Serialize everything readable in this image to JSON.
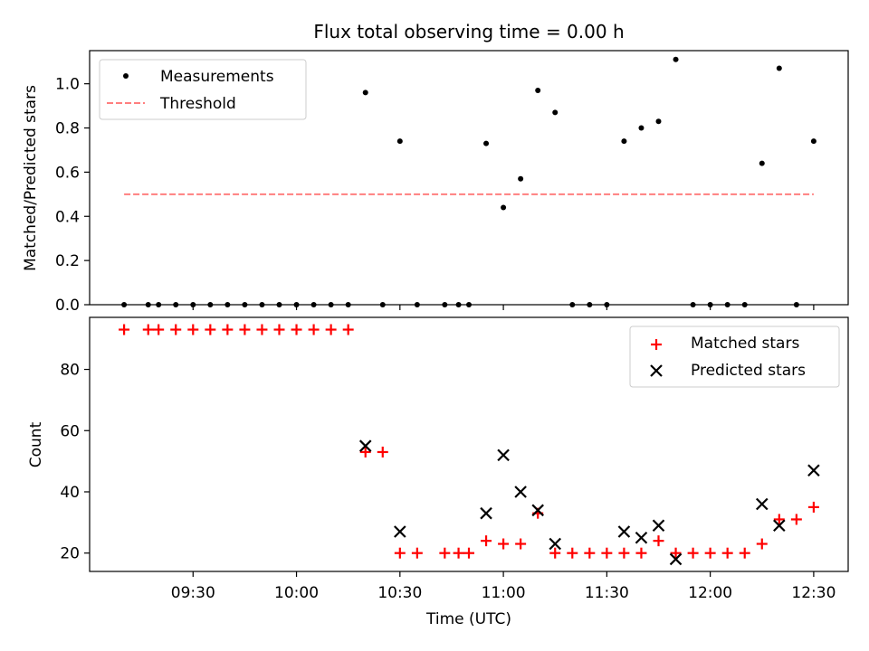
{
  "chart_data": {
    "title": "Flux total observing time = 0.00 h",
    "xlabel": "Time (UTC)",
    "x_tick_labels": [
      "09:30",
      "10:00",
      "10:30",
      "11:00",
      "11:30",
      "12:00",
      "12:30"
    ],
    "xlim": [
      "09:00",
      "12:40"
    ],
    "top": {
      "type": "scatter",
      "ylabel": "Matched/Predicted stars",
      "ylim": [
        0,
        1.15
      ],
      "yticks": [
        "0.0",
        "0.2",
        "0.4",
        "0.6",
        "0.8",
        "1.0"
      ],
      "legend": {
        "placement": "upper-left",
        "entries": [
          "Measurements",
          "Threshold"
        ]
      },
      "threshold": {
        "name": "Threshold",
        "value": 0.5,
        "x_range": [
          "09:10",
          "12:30"
        ],
        "color": "#ff7f7f",
        "style": "dashed"
      },
      "series": [
        {
          "name": "Measurements",
          "color": "#000000",
          "marker": "dot",
          "points": [
            [
              "09:10",
              0.0
            ],
            [
              "09:17",
              0.0
            ],
            [
              "09:20",
              0.0
            ],
            [
              "09:25",
              0.0
            ],
            [
              "09:30",
              0.0
            ],
            [
              "09:35",
              0.0
            ],
            [
              "09:40",
              0.0
            ],
            [
              "09:45",
              0.0
            ],
            [
              "09:50",
              0.0
            ],
            [
              "09:55",
              0.0
            ],
            [
              "10:00",
              0.0
            ],
            [
              "10:05",
              0.0
            ],
            [
              "10:10",
              0.0
            ],
            [
              "10:15",
              0.0
            ],
            [
              "10:20",
              0.96
            ],
            [
              "10:25",
              0.0
            ],
            [
              "10:30",
              0.74
            ],
            [
              "10:35",
              0.0
            ],
            [
              "10:43",
              0.0
            ],
            [
              "10:47",
              0.0
            ],
            [
              "10:50",
              0.0
            ],
            [
              "10:55",
              0.73
            ],
            [
              "11:00",
              0.44
            ],
            [
              "11:05",
              0.57
            ],
            [
              "11:10",
              0.97
            ],
            [
              "11:15",
              0.87
            ],
            [
              "11:20",
              0.0
            ],
            [
              "11:25",
              0.0
            ],
            [
              "11:30",
              0.0
            ],
            [
              "11:35",
              0.74
            ],
            [
              "11:40",
              0.8
            ],
            [
              "11:45",
              0.83
            ],
            [
              "11:50",
              1.11
            ],
            [
              "11:55",
              0.0
            ],
            [
              "12:00",
              0.0
            ],
            [
              "12:05",
              0.0
            ],
            [
              "12:10",
              0.0
            ],
            [
              "12:15",
              0.64
            ],
            [
              "12:20",
              1.07
            ],
            [
              "12:25",
              0.0
            ],
            [
              "12:30",
              0.74
            ]
          ]
        }
      ]
    },
    "bottom": {
      "type": "scatter",
      "ylabel": "Count",
      "ylim": [
        14,
        97
      ],
      "yticks": [
        "20",
        "40",
        "60",
        "80"
      ],
      "legend": {
        "placement": "upper-right",
        "entries": [
          "Matched stars",
          "Predicted stars"
        ]
      },
      "series": [
        {
          "name": "Matched stars",
          "color": "#ff0000",
          "marker": "plus",
          "points": [
            [
              "09:10",
              93
            ],
            [
              "09:17",
              93
            ],
            [
              "09:20",
              93
            ],
            [
              "09:25",
              93
            ],
            [
              "09:30",
              93
            ],
            [
              "09:35",
              93
            ],
            [
              "09:40",
              93
            ],
            [
              "09:45",
              93
            ],
            [
              "09:50",
              93
            ],
            [
              "09:55",
              93
            ],
            [
              "10:00",
              93
            ],
            [
              "10:05",
              93
            ],
            [
              "10:10",
              93
            ],
            [
              "10:15",
              93
            ],
            [
              "10:20",
              53
            ],
            [
              "10:25",
              53
            ],
            [
              "10:30",
              20
            ],
            [
              "10:35",
              20
            ],
            [
              "10:43",
              20
            ],
            [
              "10:47",
              20
            ],
            [
              "10:50",
              20
            ],
            [
              "10:55",
              24
            ],
            [
              "11:00",
              23
            ],
            [
              "11:05",
              23
            ],
            [
              "11:10",
              33
            ],
            [
              "11:15",
              20
            ],
            [
              "11:20",
              20
            ],
            [
              "11:25",
              20
            ],
            [
              "11:30",
              20
            ],
            [
              "11:35",
              20
            ],
            [
              "11:40",
              20
            ],
            [
              "11:45",
              24
            ],
            [
              "11:50",
              20
            ],
            [
              "11:55",
              20
            ],
            [
              "12:00",
              20
            ],
            [
              "12:05",
              20
            ],
            [
              "12:10",
              20
            ],
            [
              "12:15",
              23
            ],
            [
              "12:20",
              31
            ],
            [
              "12:25",
              31
            ],
            [
              "12:30",
              35
            ]
          ]
        },
        {
          "name": "Predicted stars",
          "color": "#000000",
          "marker": "x",
          "points": [
            [
              "10:20",
              55
            ],
            [
              "10:30",
              27
            ],
            [
              "10:55",
              33
            ],
            [
              "11:00",
              52
            ],
            [
              "11:05",
              40
            ],
            [
              "11:10",
              34
            ],
            [
              "11:15",
              23
            ],
            [
              "11:35",
              27
            ],
            [
              "11:40",
              25
            ],
            [
              "11:45",
              29
            ],
            [
              "11:50",
              18
            ],
            [
              "12:15",
              36
            ],
            [
              "12:20",
              29
            ],
            [
              "12:30",
              47
            ]
          ]
        }
      ]
    }
  }
}
